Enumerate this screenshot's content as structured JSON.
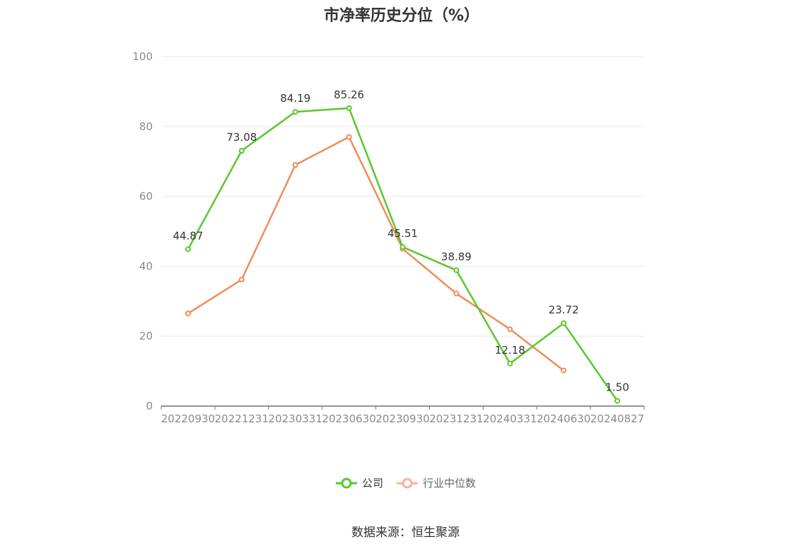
{
  "chart_data": {
    "type": "line",
    "title": "市净率历史分位（%）",
    "categories": [
      "20220930",
      "20221231",
      "20230331",
      "20230630",
      "20230930",
      "20231231",
      "20240331",
      "20240630",
      "20240827"
    ],
    "ylim": [
      0,
      100
    ],
    "yticks": [
      "0",
      "20",
      "40",
      "60",
      "80",
      "100"
    ],
    "grid": true,
    "legend_position": "bottom",
    "series": [
      {
        "name": "公司",
        "color": "#5ac82a",
        "values": [
          44.87,
          73.08,
          84.19,
          85.26,
          45.51,
          38.89,
          12.18,
          23.72,
          1.5
        ],
        "labels": [
          "44.87",
          "73.08",
          "84.19",
          "85.26",
          "45.51",
          "38.89",
          "12.18",
          "23.72",
          "1.50"
        ]
      },
      {
        "name": "行业中位数",
        "color": "#f08c5a",
        "values": [
          26.5,
          36.2,
          69.0,
          77.0,
          45.0,
          32.2,
          22.0,
          10.2,
          null
        ]
      }
    ]
  },
  "source": "数据来源：恒生聚源"
}
